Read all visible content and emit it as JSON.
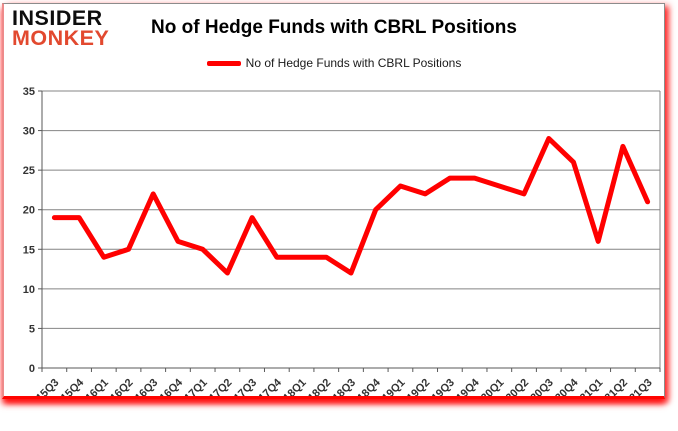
{
  "header": {
    "logo_line1": "INSIDER",
    "logo_line2": "MONKEY",
    "title": "No of Hedge Funds with CBRL Positions"
  },
  "legend": {
    "label": "No of Hedge Funds with CBRL Positions"
  },
  "colors": {
    "line": "#ff0000",
    "logo_accent": "#e2492f",
    "grid": "#848484",
    "axis": "#595959",
    "tick_text": "#333333"
  },
  "chart_data": {
    "type": "line",
    "title": "No of Hedge Funds with CBRL Positions",
    "categories": [
      "15Q3",
      "15Q4",
      "16Q1",
      "16Q2",
      "16Q3",
      "16Q4",
      "17Q1",
      "17Q2",
      "17Q3",
      "17Q4",
      "18Q1",
      "18Q2",
      "18Q3",
      "18Q4",
      "19Q1",
      "19Q2",
      "19Q3",
      "19Q4",
      "20Q1",
      "20Q2",
      "20Q3",
      "20Q4",
      "21Q1",
      "21Q2",
      "21Q3"
    ],
    "series": [
      {
        "name": "No of Hedge Funds with CBRL Positions",
        "values": [
          19,
          19,
          14,
          15,
          22,
          16,
          15,
          12,
          19,
          14,
          14,
          14,
          12,
          20,
          23,
          22,
          24,
          24,
          23,
          22,
          29,
          26,
          16,
          28,
          21
        ]
      }
    ],
    "ylim": [
      0,
      35
    ],
    "yticks": [
      0,
      5,
      10,
      15,
      20,
      25,
      30,
      35
    ],
    "grid": true,
    "legend_position": "top"
  }
}
